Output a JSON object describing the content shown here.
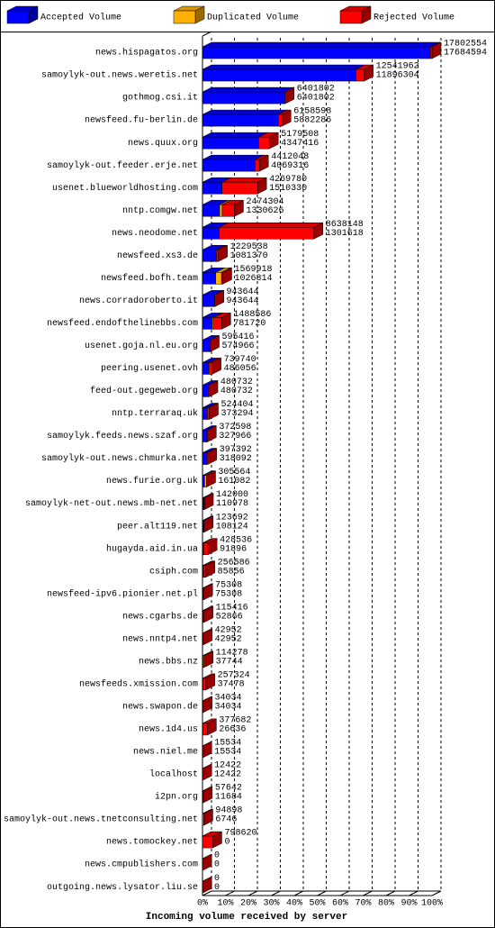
{
  "chart_data": {
    "type": "bar3d",
    "x_label": "Incoming volume received by server",
    "categories": [
      "news.hispagatos.org",
      "samoylyk-out.news.weretis.net",
      "gothmog.csi.it",
      "newsfeed.fu-berlin.de",
      "news.quux.org",
      "samoylyk-out.feeder.erje.net",
      "usenet.blueworldhosting.com",
      "nntp.comgw.net",
      "news.neodome.net",
      "newsfeed.xs3.de",
      "newsfeed.bofh.team",
      "news.corradoroberto.it",
      "newsfeed.endofthelinebbs.com",
      "usenet.goja.nl.eu.org",
      "peering.usenet.ovh",
      "feed-out.gegeweb.org",
      "nntp.terraraq.uk",
      "samoylyk.feeds.news.szaf.org",
      "samoylyk-out.news.chmurka.net",
      "news.furie.org.uk",
      "samoylyk-net-out.news.mb-net.net",
      "peer.alt119.net",
      "hugayda.aid.in.ua",
      "csiph.com",
      "newsfeed-ipv6.pionier.net.pl",
      "news.cgarbs.de",
      "news.nntp4.net",
      "news.bbs.nz",
      "newsfeeds.xmission.com",
      "news.swapon.de",
      "news.1d4.us",
      "news.niel.me",
      "localhost",
      "i2pn.org",
      "samoylyk-out.news.tnetconsulting.net",
      "news.tomockey.net",
      "news.cmpublishers.com",
      "outgoing.news.lysator.liu.se"
    ],
    "totals": [
      17802554,
      12541962,
      6401802,
      6158598,
      5179508,
      4412048,
      4269780,
      2474304,
      8638148,
      1229538,
      1569918,
      943644,
      1488586,
      595416,
      739740,
      480732,
      524404,
      372598,
      397392,
      305564,
      142000,
      123692,
      428536,
      256586,
      75308,
      115416,
      42952,
      114278,
      257324,
      34034,
      377682,
      15534,
      12422,
      57642,
      94898,
      798620,
      0,
      0
    ],
    "series": [
      {
        "name": "Accepted Volume",
        "color": "#0000ff",
        "values": [
          17684594,
          11896304,
          6401802,
          5882286,
          4347416,
          4069316,
          1510330,
          1330626,
          1301618,
          1081370,
          1026814,
          943644,
          781720,
          574966,
          486056,
          480732,
          373294,
          327966,
          318092,
          161082,
          110978,
          108124,
          91896,
          85856,
          75308,
          52866,
          42952,
          37744,
          37478,
          34034,
          26636,
          15534,
          12422,
          11684,
          6746,
          0,
          0,
          0
        ]
      },
      {
        "name": "Duplicated Volume",
        "color": "#ffb000",
        "values": [
          0,
          0,
          0,
          0,
          0,
          0,
          0,
          200000,
          0,
          0,
          450000,
          0,
          100000,
          0,
          60000,
          0,
          0,
          0,
          0,
          144482,
          0,
          0,
          0,
          0,
          0,
          0,
          0,
          76534,
          0,
          0,
          0,
          0,
          0,
          0,
          88152,
          0,
          0,
          0
        ]
      },
      {
        "name": "Rejected Volume",
        "color": "#ff0000",
        "values": [
          117960,
          645658,
          0,
          276312,
          832092,
          342732,
          2759450,
          943678,
          7336530,
          148168,
          93104,
          0,
          606866,
          20450,
          193684,
          0,
          151110,
          44632,
          79300,
          0,
          31022,
          15568,
          336640,
          170730,
          0,
          62550,
          0,
          0,
          219846,
          0,
          351046,
          0,
          0,
          45958,
          0,
          798620,
          0,
          0
        ]
      }
    ],
    "xlim": [
      0,
      17802554
    ],
    "xticks": [
      {
        "value": 0,
        "label": "0%"
      },
      {
        "value": 1780255.4,
        "label": "10%"
      },
      {
        "value": 3560510.8,
        "label": "20%"
      },
      {
        "value": 5340766.2,
        "label": "30%"
      },
      {
        "value": 7121021.6,
        "label": "40%"
      },
      {
        "value": 8901277,
        "label": "50%"
      },
      {
        "value": 10681532.4,
        "label": "60%"
      },
      {
        "value": 12461787.8,
        "label": "70%"
      },
      {
        "value": 14242043.2,
        "label": "80%"
      },
      {
        "value": 16022298.6,
        "label": "90%"
      },
      {
        "value": 17802554,
        "label": "100%"
      }
    ],
    "grid": true
  }
}
